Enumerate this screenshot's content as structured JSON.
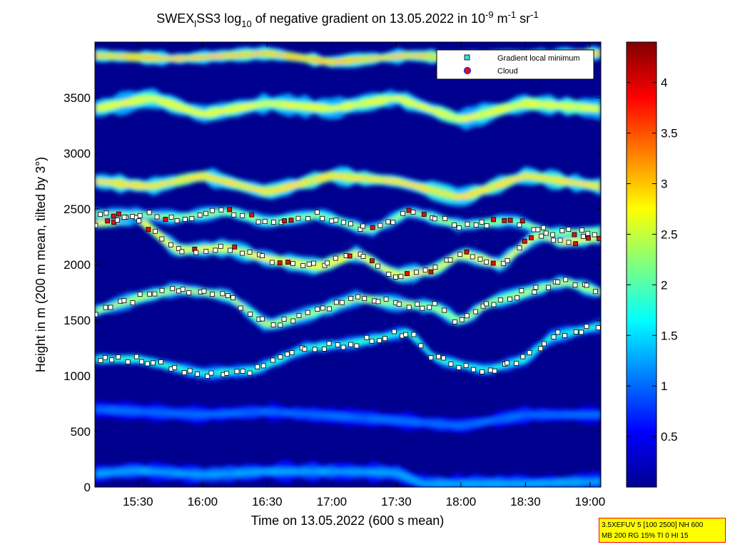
{
  "chart_data": {
    "type": "heatmap",
    "title": {
      "instrument": "SWEX",
      "instrument_sub": "l",
      "station": "SS3",
      "log_word": "log",
      "log_base": "10",
      "middle": "of negative gradient on 13.05.2022 in 10",
      "exp1": "-9",
      "unit_mid": "m",
      "exp2": "-1",
      "unit_end": "sr",
      "exp3": "-1"
    },
    "xlabel": "Time on 13.05.2022 (600 s mean)",
    "ylabel": "Height in m (200 m mean, tilted by 3°)",
    "x_ticks": [
      "15:30",
      "16:00",
      "16:30",
      "17:00",
      "17:30",
      "18:00",
      "18:30",
      "19:00"
    ],
    "y_ticks": [
      "0",
      "500",
      "1000",
      "1500",
      "2000",
      "2500",
      "3000",
      "3500"
    ],
    "xlim": [
      "15:10",
      "19:05"
    ],
    "ylim": [
      0,
      4000
    ],
    "colorbar": {
      "ticks": [
        "0.5",
        "1",
        "1.5",
        "2",
        "2.5",
        "3",
        "3.5",
        "4"
      ],
      "range": [
        0,
        4.4
      ],
      "colormap": "jet"
    },
    "legend": {
      "placement": "top-right",
      "entries": [
        {
          "label": "Gradient local minimum",
          "marker": "square",
          "color": "#2de0e0"
        },
        {
          "label": "Cloud",
          "marker": "circle",
          "color": "#e01010"
        }
      ]
    },
    "layers": [
      {
        "t": [
          15.17,
          15.5,
          16.0,
          16.5,
          17.0,
          17.5,
          17.7,
          18.0,
          18.5,
          19.08
        ],
        "h": [
          120,
          150,
          110,
          140,
          140,
          130,
          30,
          30,
          30,
          50
        ],
        "thickness": 150,
        "level": 1.1
      },
      {
        "t": [
          15.17,
          16.0,
          16.5,
          17.0,
          17.5,
          18.0,
          18.5,
          19.08
        ],
        "h": [
          700,
          650,
          680,
          640,
          600,
          550,
          650,
          650
        ],
        "thickness": 140,
        "level": 0.9
      },
      {
        "t": [
          15.17,
          15.5,
          16.0,
          16.4,
          16.8,
          17.2,
          17.6,
          17.8,
          18.2,
          18.5,
          18.7,
          19.08
        ],
        "h": [
          1150,
          1150,
          1020,
          1050,
          1250,
          1300,
          1400,
          1150,
          1050,
          1150,
          1350,
          1450
        ],
        "thickness": 110,
        "level": 1.6
      },
      {
        "t": [
          15.17,
          15.5,
          15.8,
          16.2,
          16.5,
          16.9,
          17.2,
          17.5,
          17.8,
          18.0,
          18.2,
          18.5,
          18.8,
          19.08
        ],
        "h": [
          1580,
          1700,
          1780,
          1720,
          1450,
          1580,
          1700,
          1650,
          1620,
          1480,
          1650,
          1750,
          1850,
          1750
        ],
        "thickness": 120,
        "level": 2.1
      },
      {
        "t": [
          15.17,
          15.5,
          15.8,
          16.2,
          16.5,
          16.9,
          17.2,
          17.5,
          17.8,
          18.0,
          18.3,
          18.6,
          18.8,
          19.08
        ],
        "h": [
          2380,
          2420,
          2130,
          2150,
          2050,
          1980,
          2100,
          1900,
          1950,
          2100,
          2000,
          2280,
          2200,
          2250
        ],
        "thickness": 130,
        "level": 2.4
      },
      {
        "t": [
          15.17,
          15.5,
          15.8,
          16.2,
          16.5,
          16.9,
          17.3,
          17.6,
          18.0,
          18.4,
          18.7,
          19.08
        ],
        "h": [
          2450,
          2450,
          2420,
          2480,
          2380,
          2450,
          2300,
          2480,
          2350,
          2400,
          2280,
          2300
        ],
        "thickness": 110,
        "level": 2.0
      },
      {
        "t": [
          15.17,
          15.6,
          16.0,
          16.5,
          17.0,
          17.5,
          18.0,
          18.5,
          19.08
        ],
        "h": [
          2750,
          2700,
          2800,
          2650,
          2800,
          2750,
          2600,
          2800,
          2700
        ],
        "thickness": 140,
        "level": 2.5
      },
      {
        "t": [
          15.17,
          15.6,
          16.0,
          16.5,
          17.0,
          17.5,
          18.0,
          18.5,
          19.08
        ],
        "h": [
          3400,
          3500,
          3350,
          3450,
          3400,
          3500,
          3300,
          3450,
          3400
        ],
        "thickness": 160,
        "level": 2.3
      },
      {
        "t": [
          15.17,
          15.8,
          16.5,
          17.0,
          17.6,
          18.1,
          18.6,
          19.08
        ],
        "h": [
          3880,
          3850,
          3900,
          3820,
          3880,
          3850,
          3870,
          3900
        ],
        "thickness": 110,
        "level": 2.6
      }
    ]
  },
  "info_box": {
    "line1": "3.5XEFUV 5 [100 2500] NH 600",
    "line2": "MB 200 RG 15% TI 0 HI 15"
  }
}
